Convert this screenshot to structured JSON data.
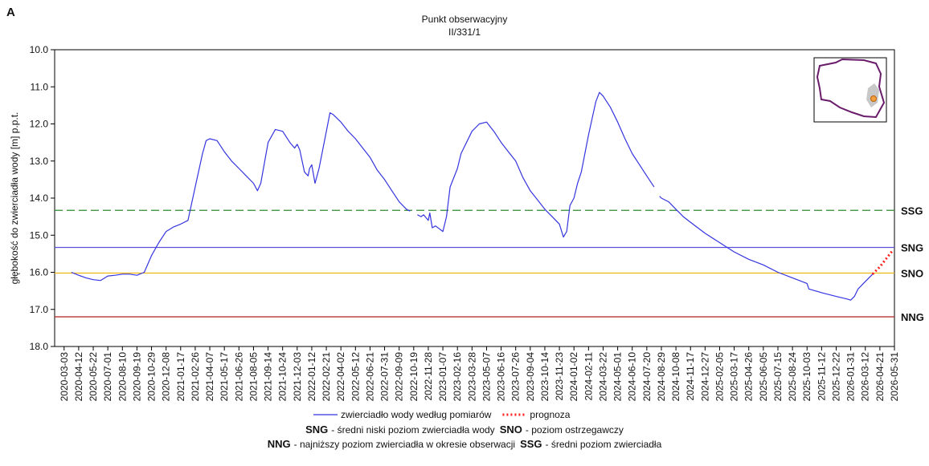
{
  "chart_data": {
    "type": "line",
    "panel_label": "A",
    "title": "Punkt obserwacyjny",
    "subtitle": "II/331/1",
    "y_label": "głębokość do zwierciadła wody [m] p.p.t.",
    "y_inverted": true,
    "ylim": [
      10,
      18
    ],
    "yticks": [
      {
        "value": 10,
        "label": "10.0"
      },
      {
        "value": 11,
        "label": "11.0"
      },
      {
        "value": 12,
        "label": "12.0"
      },
      {
        "value": 13,
        "label": "13.0"
      },
      {
        "value": 14,
        "label": "14.0"
      },
      {
        "value": 15,
        "label": "15.0"
      },
      {
        "value": 16,
        "label": "16.0"
      },
      {
        "value": 17,
        "label": "17.0"
      },
      {
        "value": 18,
        "label": "18.0"
      }
    ],
    "xlim": [
      "2020-02-06",
      "2026-05-31"
    ],
    "xticks": [
      "2020-03-03",
      "2020-04-12",
      "2020-05-22",
      "2020-07-01",
      "2020-08-10",
      "2020-09-19",
      "2020-10-29",
      "2020-12-08",
      "2021-01-17",
      "2021-02-26",
      "2021-04-07",
      "2021-05-17",
      "2021-06-26",
      "2021-08-05",
      "2021-09-14",
      "2021-10-24",
      "2021-12-03",
      "2022-01-12",
      "2022-02-21",
      "2022-04-02",
      "2022-05-12",
      "2022-06-21",
      "2022-07-31",
      "2022-09-09",
      "2022-10-19",
      "2022-11-28",
      "2023-01-07",
      "2023-02-16",
      "2023-03-28",
      "2023-05-07",
      "2023-06-16",
      "2023-07-26",
      "2023-09-04",
      "2023-10-14",
      "2023-11-23",
      "2024-01-02",
      "2024-02-11",
      "2024-03-22",
      "2024-05-01",
      "2024-06-10",
      "2024-07-20",
      "2024-08-29",
      "2024-10-08",
      "2024-11-17",
      "2024-12-27",
      "2025-02-05",
      "2025-03-17",
      "2025-04-26",
      "2025-06-05",
      "2025-07-15",
      "2025-08-24",
      "2025-10-03",
      "2025-11-12",
      "2025-12-22",
      "2026-01-31",
      "2026-03-12",
      "2026-04-21",
      "2026-05-31"
    ],
    "series": [
      {
        "name": "zwierciadło wody według pomiarów",
        "color": "#3535e0",
        "style": "solid",
        "x": [
          "2020-03-23",
          "2020-04-12",
          "2020-05-02",
          "2020-05-22",
          "2020-06-11",
          "2020-07-01",
          "2020-07-21",
          "2020-08-10",
          "2020-08-30",
          "2020-09-19",
          "2020-10-09",
          "2020-10-29",
          "2020-11-18",
          "2020-12-08",
          "2020-12-28",
          "2021-01-17",
          "2021-02-06",
          "2021-02-26",
          "2021-03-18",
          "2021-03-28",
          "2021-04-07",
          "2021-04-27",
          "2021-05-17",
          "2021-06-06",
          "2021-06-26",
          "2021-07-16",
          "2021-08-05",
          "2021-08-16",
          "2021-08-25",
          "2021-09-14",
          "2021-10-04",
          "2021-10-24",
          "2021-11-13",
          "2021-11-26",
          "2021-12-03",
          "2021-12-10",
          "2021-12-23",
          "2022-01-02",
          "2022-01-06",
          "2022-01-12",
          "2022-01-21",
          "2022-02-01",
          "2022-02-21",
          "2022-03-03",
          "2022-03-12",
          "2022-04-02",
          "2022-04-22",
          "2022-05-12",
          "2022-06-01",
          "2022-06-21",
          "2022-07-11",
          "2022-07-31",
          "2022-08-20",
          "2022-09-09",
          "2022-09-29",
          "2022-10-09",
          "2022-10-19",
          "2022-10-29",
          "2022-11-08",
          "2022-11-15",
          "2022-11-28",
          "2022-12-02",
          "2022-12-09",
          "2022-12-18",
          "2023-01-07",
          "2023-01-17",
          "2023-01-27",
          "2023-02-16",
          "2023-02-26",
          "2023-03-28",
          "2023-04-17",
          "2023-05-07",
          "2023-05-27",
          "2023-06-16",
          "2023-07-06",
          "2023-07-26",
          "2023-08-15",
          "2023-09-04",
          "2023-09-24",
          "2023-10-14",
          "2023-11-03",
          "2023-11-23",
          "2023-12-04",
          "2023-12-13",
          "2023-12-22",
          "2024-01-02",
          "2024-01-12",
          "2024-01-22",
          "2024-02-11",
          "2024-03-02",
          "2024-03-12",
          "2024-03-22",
          "2024-04-11",
          "2024-05-01",
          "2024-05-21",
          "2024-06-10",
          "2024-06-30",
          "2024-07-20",
          "2024-08-09",
          "2024-08-16",
          "2024-08-24",
          "2024-08-29",
          "2024-09-18",
          "2024-10-08",
          "2024-10-28",
          "2024-11-17",
          "2024-12-27",
          "2025-02-05",
          "2025-03-17",
          "2025-04-26",
          "2025-06-05",
          "2025-07-15",
          "2025-08-24",
          "2025-10-03",
          "2025-10-08",
          "2025-11-12",
          "2025-12-22",
          "2026-01-21",
          "2026-01-31",
          "2026-02-10",
          "2026-02-20",
          "2026-03-12",
          "2026-03-22",
          "2026-04-01"
        ],
        "values": [
          16.0,
          16.08,
          16.15,
          16.2,
          16.22,
          16.1,
          16.08,
          16.05,
          16.05,
          16.08,
          16.0,
          15.55,
          15.2,
          14.9,
          14.78,
          14.7,
          14.6,
          13.7,
          12.8,
          12.45,
          12.4,
          12.45,
          12.75,
          13.0,
          13.2,
          13.4,
          13.6,
          13.8,
          13.6,
          12.5,
          12.15,
          12.2,
          12.5,
          12.65,
          12.55,
          12.7,
          13.3,
          13.4,
          13.2,
          13.1,
          13.6,
          13.2,
          12.2,
          11.7,
          11.75,
          11.95,
          12.2,
          12.4,
          12.65,
          12.9,
          13.25,
          13.5,
          13.8,
          14.1,
          14.3,
          14.35,
          null,
          14.45,
          14.5,
          14.45,
          14.6,
          14.4,
          14.8,
          14.75,
          14.9,
          14.5,
          13.7,
          13.2,
          12.8,
          12.2,
          12.0,
          11.95,
          12.2,
          12.5,
          12.75,
          13.0,
          13.45,
          13.8,
          14.05,
          14.3,
          14.5,
          14.7,
          15.05,
          14.9,
          14.2,
          14.0,
          13.6,
          13.3,
          12.3,
          11.4,
          11.15,
          11.25,
          11.55,
          11.95,
          12.4,
          12.8,
          13.1,
          13.4,
          13.7,
          null,
          13.95,
          14.0,
          14.1,
          14.3,
          14.5,
          14.65,
          14.95,
          15.2,
          15.45,
          15.65,
          15.8,
          16.0,
          16.15,
          16.3,
          16.45,
          16.55,
          16.65,
          16.72,
          16.75,
          16.65,
          16.45,
          16.25,
          16.15,
          16.05
        ]
      },
      {
        "name": "prognoza",
        "color": "#ff2020",
        "style": "dotted",
        "x": [
          "2026-04-01",
          "2026-04-21",
          "2026-05-11",
          "2026-05-27"
        ],
        "values": [
          16.05,
          15.85,
          15.6,
          15.4
        ]
      }
    ],
    "reference_lines": [
      {
        "label": "SSG",
        "value": 14.33,
        "color": "#2e8b2e",
        "style": "dashed"
      },
      {
        "label": "SNG",
        "value": 15.33,
        "color": "#5a4fd8",
        "style": "solid"
      },
      {
        "label": "SNO",
        "value": 16.02,
        "color": "#f0b400",
        "style": "solid"
      },
      {
        "label": "NNG",
        "value": 17.2,
        "color": "#b22222",
        "style": "solid"
      }
    ],
    "notes": [
      [
        {
          "abbr": "SNG",
          "text": "- średni niski poziom zwierciadła wody"
        },
        {
          "abbr": "SNO",
          "text": "- poziom ostrzegawczy"
        }
      ],
      [
        {
          "abbr": "NNG",
          "text": "- najniższy poziom zwierciadła w okresie obserwacji"
        },
        {
          "abbr": "SSG",
          "text": "- średni poziom zwierciadła"
        }
      ]
    ]
  }
}
